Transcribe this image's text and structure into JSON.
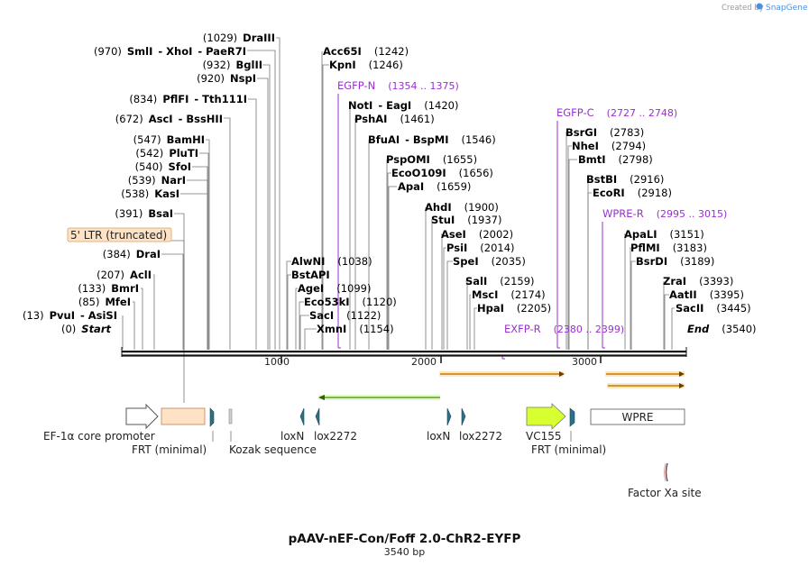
{
  "credit": "Created by",
  "brand": "SnapGene",
  "title": "pAAV-nEF-Con/Foff 2.0-ChR2-EYFP",
  "length": "3540 bp",
  "seq_length": 3540,
  "ticks": [
    "1000",
    "2000",
    "3000"
  ],
  "start_label": {
    "pos": "(0)",
    "name": "Start"
  },
  "end_label": {
    "pos": "(3540)",
    "name": "End"
  },
  "enzymes_left": [
    {
      "pos": "(1029)",
      "name": "DraIII",
      "bp": 1029
    },
    {
      "pos": "(970)",
      "name": "SmlI",
      "sep": "- XhoI",
      "name2": "- PaeR7I",
      "bp": 970
    },
    {
      "pos": "(932)",
      "name": "BglII",
      "bp": 932
    },
    {
      "pos": "(920)",
      "name": "NspI",
      "bp": 920
    },
    {
      "pos": "(834)",
      "name": "PflFI",
      "sep": "- Tth111I",
      "bp": 834
    },
    {
      "pos": "(672)",
      "name": "AscI",
      "sep": "- BssHII",
      "bp": 672
    },
    {
      "pos": "(547)",
      "name": "BamHI",
      "bp": 547
    },
    {
      "pos": "(542)",
      "name": "PluTI",
      "bp": 542
    },
    {
      "pos": "(540)",
      "name": "SfoI",
      "bp": 540
    },
    {
      "pos": "(539)",
      "name": "NarI",
      "bp": 539
    },
    {
      "pos": "(538)",
      "name": "KasI",
      "bp": 538
    },
    {
      "pos": "(391)",
      "name": "BsaI",
      "bp": 391
    },
    {
      "pos": "(384)",
      "name": "DraI",
      "bp": 384
    },
    {
      "pos": "(207)",
      "name": "AclI",
      "bp": 207
    },
    {
      "pos": "(133)",
      "name": "BmrI",
      "bp": 133
    },
    {
      "pos": "(85)",
      "name": "MfeI",
      "bp": 85
    },
    {
      "pos": "(13)",
      "name": "PvuI",
      "sep": "- AsiSI",
      "bp": 13
    }
  ],
  "enzymes_right": [
    {
      "name": "Acc65I",
      "pos": "(1242)",
      "bp": 1242
    },
    {
      "name": "KpnI",
      "pos": "(1246)",
      "bp": 1246
    },
    {
      "name": "NotI",
      "sep": "- EagI",
      "pos": "(1420)",
      "bp": 1420
    },
    {
      "name": "PshAI",
      "pos": "(1461)",
      "bp": 1461
    },
    {
      "name": "BfuAI",
      "sep": "- BspMI",
      "pos": "(1546)",
      "bp": 1546
    },
    {
      "name": "PspOMI",
      "pos": "(1655)",
      "bp": 1655
    },
    {
      "name": "EcoO109I",
      "pos": "(1656)",
      "bp": 1656
    },
    {
      "name": "ApaI",
      "pos": "(1659)",
      "bp": 1659
    },
    {
      "name": "AlwNI",
      "pos": "(1038)",
      "bp": 1038
    },
    {
      "name": "BstAPI",
      "pos": "",
      "bp": 1047
    },
    {
      "name": "AgeI",
      "pos": "(1099)",
      "bp": 1099
    },
    {
      "name": "Eco53kI",
      "pos": "(1120)",
      "bp": 1120
    },
    {
      "name": "SacI",
      "pos": "(1122)",
      "bp": 1122
    },
    {
      "name": "XmnI",
      "pos": "(1154)",
      "bp": 1154
    },
    {
      "name": "AhdI",
      "pos": "(1900)",
      "bp": 1900
    },
    {
      "name": "StuI",
      "pos": "(1937)",
      "bp": 1937
    },
    {
      "name": "AseI",
      "pos": "(2002)",
      "bp": 2002
    },
    {
      "name": "PsiI",
      "pos": "(2014)",
      "bp": 2014
    },
    {
      "name": "SpeI",
      "pos": "(2035)",
      "bp": 2035
    },
    {
      "name": "SalI",
      "pos": "(2159)",
      "bp": 2159
    },
    {
      "name": "MscI",
      "pos": "(2174)",
      "bp": 2174
    },
    {
      "name": "HpaI",
      "pos": "(2205)",
      "bp": 2205
    },
    {
      "name": "BsrGI",
      "pos": "(2783)",
      "bp": 2783
    },
    {
      "name": "NheI",
      "pos": "(2794)",
      "bp": 2794
    },
    {
      "name": "BmtI",
      "pos": "(2798)",
      "bp": 2798
    },
    {
      "name": "BstBI",
      "pos": "(2916)",
      "bp": 2916
    },
    {
      "name": "EcoRI",
      "pos": "(2918)",
      "bp": 2918
    },
    {
      "name": "ApaLI",
      "pos": "(3151)",
      "bp": 3151
    },
    {
      "name": "PflMI",
      "pos": "(3183)",
      "bp": 3183
    },
    {
      "name": "BsrDI",
      "pos": "(3189)",
      "bp": 3189
    },
    {
      "name": "ZraI",
      "pos": "(3393)",
      "bp": 3393
    },
    {
      "name": "AatII",
      "pos": "(3395)",
      "bp": 3395
    },
    {
      "name": "SacII",
      "pos": "(3445)",
      "bp": 3445
    }
  ],
  "primers": [
    {
      "name": "EGFP-N",
      "range": "(1354 .. 1375)",
      "bp": 1354
    },
    {
      "name": "EGFP-C",
      "range": "(2727 .. 2748)",
      "bp": 2727
    },
    {
      "name": "WPRE-R",
      "range": "(2995 .. 3015)",
      "bp": 2995
    },
    {
      "name": "EXFP-R",
      "range": "(2380 .. 2399)",
      "bp": 2380
    }
  ],
  "features": {
    "ltr": "5' LTR (truncated)",
    "ef1a": "EF-1α core promoter",
    "frt1": "FRT (minimal)",
    "kozak": "Kozak sequence",
    "loxn1": "loxN",
    "lox2272_1": "lox2272",
    "loxn2": "loxN",
    "lox2272_2": "lox2272",
    "vc155": "VC155",
    "frt2": "FRT (minimal)",
    "wpre": "WPRE",
    "factorxa": "Factor Xa site"
  },
  "colors": {
    "primer": "#9a2fd1",
    "orf_orange": "#f5a623",
    "orf_green": "#7ed321",
    "lox": "#2e6f86",
    "vc155": "#d8ff30",
    "ltr": "#fde2c6",
    "brand": "#4a90e2"
  }
}
